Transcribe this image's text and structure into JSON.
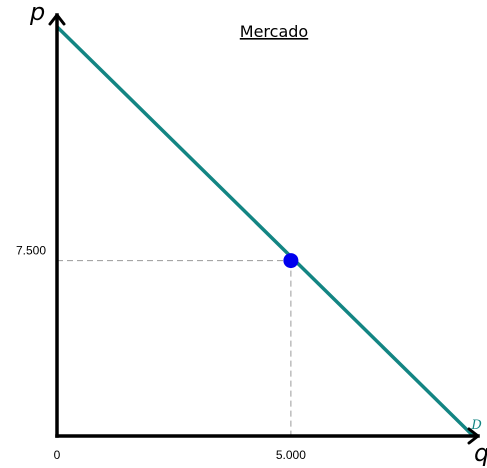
{
  "chart_data": {
    "type": "line",
    "title": "Mercado",
    "xlabel": "q",
    "ylabel": "p",
    "xlim": [
      0,
      9000
    ],
    "ylim": [
      0,
      18000
    ],
    "x_ticks": [
      {
        "value": 0,
        "label": "0"
      },
      {
        "value": 5000,
        "label": "5.000"
      }
    ],
    "y_ticks": [
      {
        "value": 7500,
        "label": "7.500"
      }
    ],
    "series": [
      {
        "name": "D",
        "x": [
          0,
          8900
        ],
        "y": [
          17500,
          0
        ],
        "color": "#138583"
      }
    ],
    "points": [
      {
        "x": 5000,
        "y": 7500,
        "color": "#0000ee"
      }
    ],
    "guides": [
      {
        "x": 5000,
        "y": 7500
      }
    ],
    "grid": false,
    "legend": "none"
  }
}
